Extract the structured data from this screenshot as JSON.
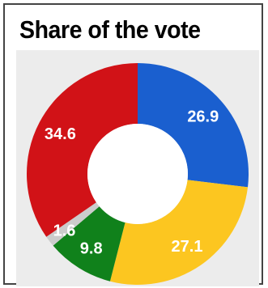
{
  "chart_data": {
    "type": "pie",
    "title": "Share of the vote",
    "donut": true,
    "legend": "none",
    "slices": [
      {
        "label": "26.9",
        "value": 26.9,
        "color": "#1a5fcf"
      },
      {
        "label": "27.1",
        "value": 27.1,
        "color": "#fcc620"
      },
      {
        "label": "9.8",
        "value": 9.8,
        "color": "#10811b"
      },
      {
        "label": "1.6",
        "value": 1.6,
        "color": "#cccccc"
      },
      {
        "label": "34.6",
        "value": 34.6,
        "color": "#d11217"
      }
    ]
  }
}
